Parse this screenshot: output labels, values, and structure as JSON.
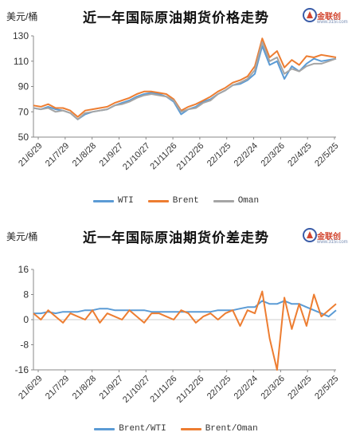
{
  "chart_data": [
    {
      "type": "line",
      "title": "近一年国际原油期货价格走势",
      "ylabel": "美元/桶",
      "ylim": [
        50,
        130
      ],
      "yticks": [
        "50",
        "70",
        "90",
        "110",
        "130"
      ],
      "grid": false,
      "legend_placement": "bottom",
      "x_tick_labels": [
        "21/6/29",
        "21/7/29",
        "21/8/28",
        "21/9/27",
        "21/10/27",
        "21/11/26",
        "21/12/26",
        "22/1/25",
        "22/2/24",
        "22/3/26",
        "22/4/25",
        "22/5/25"
      ],
      "series": [
        {
          "name": "WTI",
          "color": "#5b9bd5",
          "values": [
            73,
            72,
            74,
            72,
            71,
            69,
            64,
            68,
            70,
            71,
            72,
            75,
            77,
            79,
            82,
            84,
            85,
            84,
            82,
            78,
            68,
            72,
            74,
            78,
            80,
            84,
            87,
            91,
            92,
            95,
            100,
            122,
            107,
            110,
            96,
            106,
            102,
            108,
            112,
            110,
            111,
            112
          ]
        },
        {
          "name": "Brent",
          "color": "#ed7d31",
          "values": [
            75,
            74,
            76,
            73,
            73,
            71,
            66,
            71,
            72,
            73,
            74,
            77,
            79,
            81,
            84,
            86,
            86,
            85,
            84,
            80,
            71,
            74,
            76,
            79,
            82,
            86,
            89,
            93,
            95,
            98,
            106,
            128,
            113,
            118,
            105,
            111,
            107,
            114,
            113,
            115,
            114,
            113
          ]
        },
        {
          "name": "Oman",
          "color": "#a5a5a5",
          "values": [
            73,
            72,
            73,
            70,
            71,
            69,
            64,
            69,
            70,
            71,
            72,
            75,
            76,
            78,
            81,
            83,
            84,
            83,
            82,
            79,
            70,
            72,
            73,
            77,
            79,
            84,
            87,
            91,
            93,
            96,
            103,
            125,
            110,
            113,
            100,
            104,
            102,
            106,
            108,
            108,
            110,
            112
          ]
        }
      ]
    },
    {
      "type": "line",
      "title": "近一年国际原油期货价差走势",
      "ylabel": "美元/桶",
      "ylim": [
        -16,
        16
      ],
      "yticks": [
        "-16",
        "-8",
        "0",
        "8",
        "16"
      ],
      "grid": false,
      "legend_placement": "bottom",
      "x_tick_labels": [
        "21/6/29",
        "21/7/29",
        "21/8/28",
        "21/9/27",
        "21/10/27",
        "21/11/26",
        "21/12/26",
        "22/1/25",
        "22/2/24",
        "22/3/26",
        "22/4/25",
        "22/5/25"
      ],
      "series": [
        {
          "name": "Brent/WTI",
          "color": "#5b9bd5",
          "values": [
            2,
            2,
            2.5,
            2,
            2.5,
            2.5,
            2.5,
            3,
            3,
            3.5,
            3.5,
            3,
            3,
            3,
            3,
            3,
            2.5,
            2.5,
            2.5,
            2.5,
            2.5,
            2.5,
            2.5,
            2.5,
            2.5,
            3,
            3,
            3,
            3.5,
            4,
            4,
            6,
            5,
            5,
            6,
            5,
            5,
            4,
            3,
            2,
            1,
            3
          ]
        },
        {
          "name": "Brent/Oman",
          "color": "#ed7d31",
          "values": [
            2,
            0,
            3,
            1,
            -1,
            2,
            1,
            0,
            3,
            -1,
            2,
            1,
            0,
            3,
            1,
            -1,
            2,
            2,
            1,
            0,
            3,
            2,
            -1,
            1,
            2,
            0,
            2,
            3,
            -2,
            3,
            2,
            9,
            -6,
            -16,
            7,
            -3,
            5,
            -2,
            8,
            1,
            3,
            5
          ]
        }
      ]
    }
  ],
  "panels": [
    {
      "unit": "美元/桶",
      "title": "近一年国际原油期货价格走势",
      "legend": [
        "WTI",
        "Brent",
        "Oman"
      ]
    },
    {
      "unit": "美元/桶",
      "title": "近一年国际原油期货价差走势",
      "legend": [
        "Brent/WTI",
        "Brent/Oman"
      ]
    }
  ],
  "logo": {
    "name": "金联创",
    "sub": "www.315i.com"
  },
  "colors": {
    "wti": "#5b9bd5",
    "brent": "#ed7d31",
    "oman": "#a5a5a5",
    "axis": "#888888",
    "logo_red": "#d2452f",
    "logo_blue": "#3a5ca8"
  }
}
